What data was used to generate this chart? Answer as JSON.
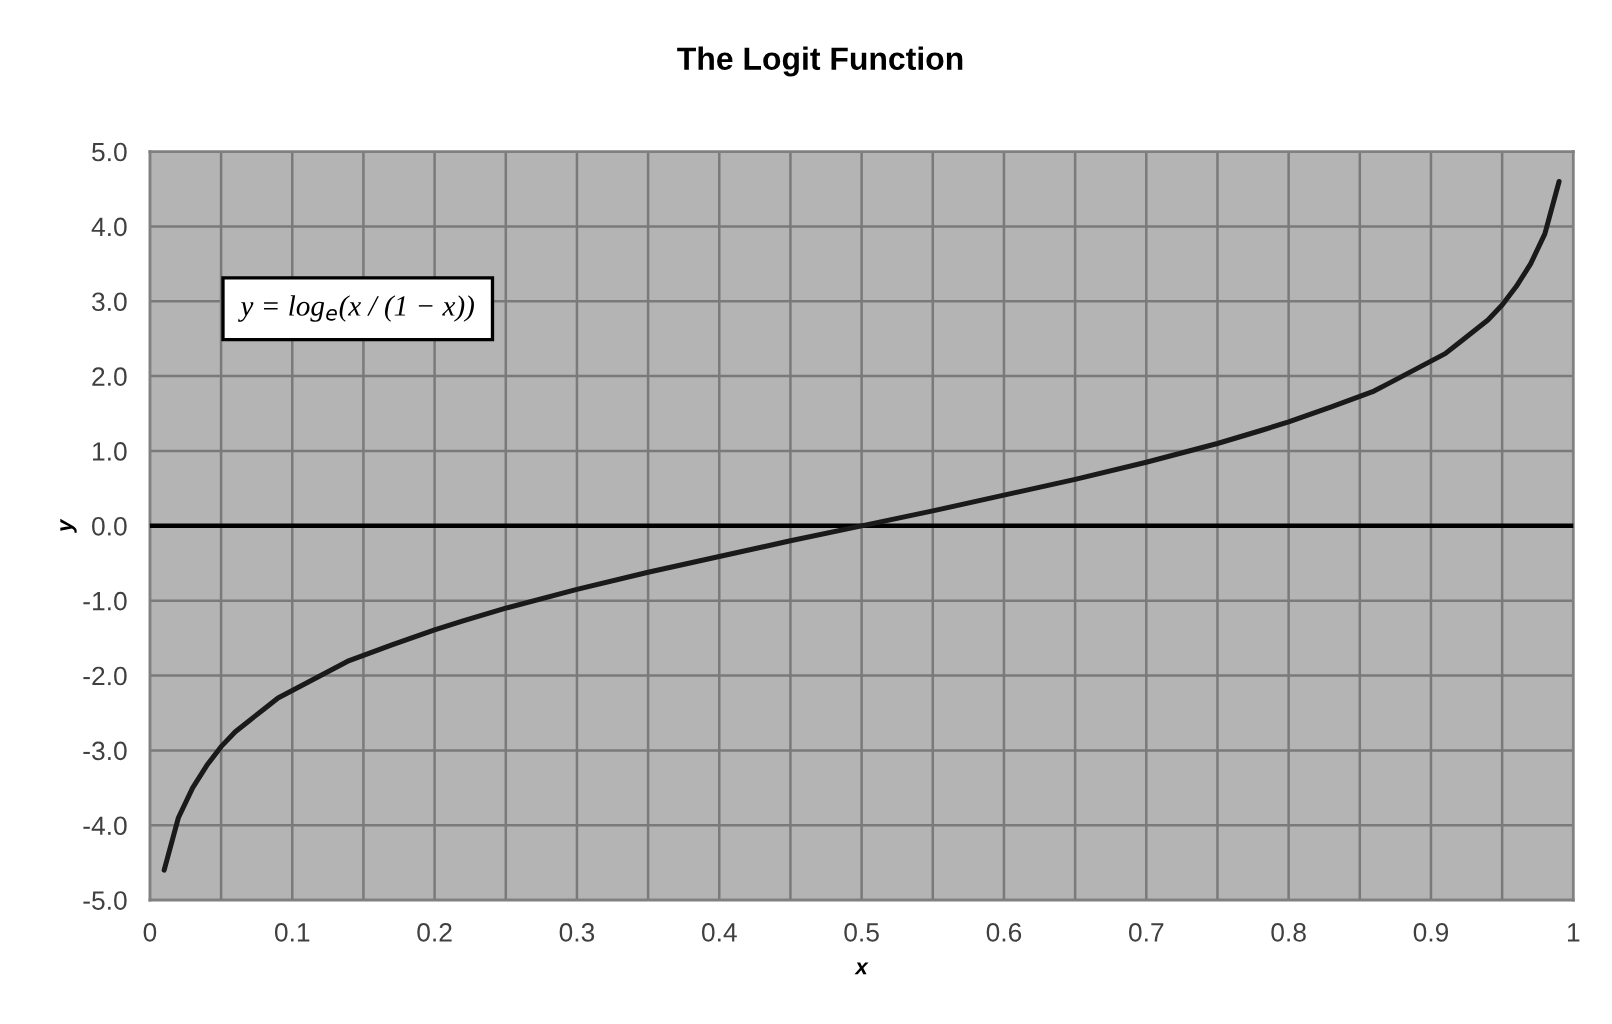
{
  "chart_data": {
    "type": "line",
    "title": "The Logit Function",
    "xlabel": "x",
    "ylabel": "y",
    "annotations": [
      "y = log$_{e}$(x / (1 − x))"
    ],
    "x": [
      0.01,
      0.02,
      0.03,
      0.04,
      0.05,
      0.06,
      0.07,
      0.08,
      0.09,
      0.1,
      0.11,
      0.12,
      0.13,
      0.14,
      0.15,
      0.17,
      0.2,
      0.22,
      0.25,
      0.3,
      0.35,
      0.4,
      0.45,
      0.5,
      0.55,
      0.6,
      0.65,
      0.7,
      0.75,
      0.78,
      0.8,
      0.83,
      0.85,
      0.86,
      0.87,
      0.88,
      0.89,
      0.9,
      0.91,
      0.92,
      0.93,
      0.94,
      0.95,
      0.96,
      0.97,
      0.98,
      0.99
    ],
    "series": [
      {
        "color": "#1a1a1a",
        "values": [
          -4.6,
          -3.9,
          -3.5,
          -3.2,
          -2.95,
          -2.75,
          -2.6,
          -2.45,
          -2.3,
          -2.2,
          -2.1,
          -2.0,
          -1.9,
          -1.8,
          -1.73,
          -1.59,
          -1.39,
          -1.27,
          -1.1,
          -0.85,
          -0.62,
          -0.41,
          -0.2,
          0.0,
          0.2,
          0.41,
          0.62,
          0.85,
          1.1,
          1.27,
          1.39,
          1.59,
          1.73,
          1.8,
          1.9,
          2.0,
          2.1,
          2.2,
          2.3,
          2.45,
          2.6,
          2.75,
          2.95,
          3.2,
          3.5,
          3.9,
          4.6
        ]
      }
    ],
    "xlim": [
      0,
      1
    ],
    "ylim": [
      -5,
      5
    ],
    "xticks": [
      0,
      {
        "value": 0.05,
        "label": null
      },
      0.1,
      {
        "value": 0.15,
        "label": null
      },
      0.2,
      {
        "value": 0.25,
        "label": null
      },
      0.3,
      {
        "value": 0.35,
        "label": null
      },
      0.4,
      {
        "value": 0.45,
        "label": null
      },
      0.5,
      {
        "value": 0.55,
        "label": null
      },
      0.6,
      {
        "value": 0.65,
        "label": null
      },
      0.7,
      {
        "value": 0.75,
        "label": null
      },
      0.8,
      {
        "value": 0.85,
        "label": null
      },
      0.9,
      {
        "value": 0.95,
        "label": null
      },
      1
    ],
    "yticks": [
      {
        "value": -5,
        "label": "-5.0"
      },
      {
        "value": -4,
        "label": "-4.0"
      },
      {
        "value": -3,
        "label": "-3.0"
      },
      {
        "value": -2,
        "label": "-2.0"
      },
      {
        "value": -1,
        "label": "-1.0"
      },
      {
        "value": 0,
        "label": "0.0"
      },
      {
        "value": 1,
        "label": "1.0"
      },
      {
        "value": 2,
        "label": "2.0"
      },
      {
        "value": 3,
        "label": "3.0"
      },
      {
        "value": 4,
        "label": "4.0"
      },
      {
        "value": 5,
        "label": "5.0"
      }
    ],
    "grid": true,
    "line_style": "solid",
    "ref_lines": [
      {
        "axis": "y",
        "value": 0,
        "color": "#000000"
      }
    ]
  }
}
